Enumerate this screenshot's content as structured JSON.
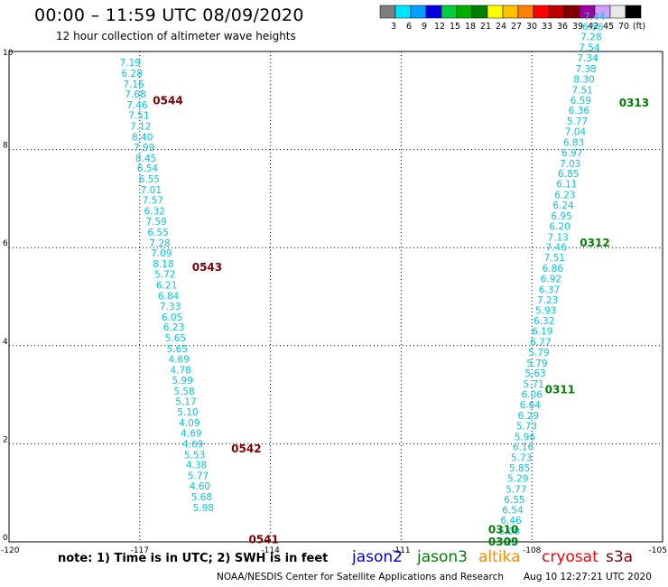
{
  "header": {
    "title": "00:00 – 11:59 UTC 08/09/2020",
    "subtitle": "12 hour collection of altimeter wave heights"
  },
  "colorbar": {
    "labels": [
      "3",
      "6",
      "9",
      "12",
      "15",
      "18",
      "21",
      "24",
      "27",
      "30",
      "33",
      "36",
      "39",
      "42",
      "45",
      "70",
      "(ft)"
    ],
    "colors": [
      "#7f7f7f",
      "#00e5ff",
      "#00a0ff",
      "#0000e0",
      "#00d040",
      "#00b000",
      "#008000",
      "#ffff00",
      "#ffc000",
      "#ff8000",
      "#ff0000",
      "#c00000",
      "#800000",
      "#a000a0",
      "#d0a0ff",
      "#e8e8e8",
      "#000000"
    ]
  },
  "footer": {
    "note": "note:  1) Time is in UTC;  2) SWH is in feet",
    "satellites": [
      {
        "name": "jason2",
        "color": "#0000e0"
      },
      {
        "name": "jason3",
        "color": "#008000"
      },
      {
        "name": "altika",
        "color": "#ff8c00"
      },
      {
        "name": "cryosat",
        "color": "#ff0000"
      },
      {
        "name": "s3a",
        "color": "#800000"
      }
    ],
    "credit": "NOAA/NESDIS Center for Satellite Applications and Research",
    "timestamp": "Aug 10 12:27:21 UTC 2020"
  },
  "chart_data": {
    "type": "scatter",
    "title": "12 hour collection of altimeter wave heights",
    "xlim": [
      -120,
      -105
    ],
    "ylim": [
      0,
      10
    ],
    "x_ticks": [
      "-120",
      "-117",
      "-114",
      "-111",
      "-108",
      "-105"
    ],
    "y_ticks": [
      "0",
      "2",
      "4",
      "6",
      "8",
      "10"
    ],
    "grid": true,
    "value_color": "#00c8e8",
    "series": [
      {
        "satellite": "s3a",
        "values": [
          "7.19",
          "6.28",
          "7.16",
          "7.68",
          "7.46",
          "7.51",
          "7.12",
          "8.40",
          "7.99",
          "8.45",
          "6.54",
          "6.55",
          "7.01",
          "7.57",
          "6.32",
          "7.59",
          "6.55",
          "7.28",
          "7.09",
          "8.18",
          "5.72",
          "6.21",
          "6.84",
          "7.33",
          "6.05",
          "6.23",
          "5.65",
          "5.65",
          "4.69",
          "4.78",
          "5.99",
          "5.58",
          "5.17",
          "5.10",
          "4.09",
          "4.69",
          "4.69",
          "5.53",
          "4.38",
          "5.77",
          "4.60",
          "5.68",
          "5.98"
        ],
        "x": [
          -117.22,
          -117.18,
          -117.14,
          -117.1,
          -117.06,
          -117.02,
          -116.98,
          -116.94,
          -116.9,
          -116.86,
          -116.82,
          -116.78,
          -116.74,
          -116.7,
          -116.66,
          -116.62,
          -116.58,
          -116.54,
          -116.5,
          -116.46,
          -116.42,
          -116.38,
          -116.34,
          -116.3,
          -116.26,
          -116.22,
          -116.18,
          -116.14,
          -116.1,
          -116.06,
          -116.02,
          -115.98,
          -115.94,
          -115.9,
          -115.86,
          -115.82,
          -115.78,
          -115.74,
          -115.7,
          -115.66,
          -115.62,
          -115.58,
          -115.54
        ],
        "y": [
          9.78,
          9.56,
          9.34,
          9.13,
          8.91,
          8.7,
          8.48,
          8.26,
          8.05,
          7.83,
          7.62,
          7.4,
          7.18,
          6.97,
          6.75,
          6.54,
          6.32,
          6.1,
          5.89,
          5.67,
          5.46,
          5.24,
          5.02,
          4.81,
          4.59,
          4.38,
          4.16,
          3.94,
          3.73,
          3.51,
          3.3,
          3.08,
          2.86,
          2.65,
          2.43,
          2.22,
          2.0,
          1.78,
          1.57,
          1.35,
          1.14,
          0.92,
          0.7
        ]
      },
      {
        "satellite": "jason3",
        "values": [
          "5.28",
          "6.00",
          "6.46",
          "6.54",
          "6.55",
          "5.77",
          "5.29",
          "5.85",
          "5.73",
          "6.16",
          "5.96",
          "5.73",
          "6.29",
          "6.64",
          "6.06",
          "5.71",
          "5.63",
          "5.79",
          "5.79",
          "6.77",
          "6.19",
          "6.32",
          "5.93",
          "7.23",
          "6.37",
          "6.92",
          "6.86",
          "7.51",
          "7.46",
          "7.13",
          "6.20",
          "6.95",
          "6.24",
          "6.23",
          "6.11",
          "6.85",
          "7.03",
          "6.97",
          "6.83",
          "7.04",
          "5.77",
          "6.36",
          "6.59",
          "7.51",
          "8.30",
          "7.38",
          "7.34",
          "7.54",
          "7.28",
          "6.56",
          "7.44"
        ],
        "x": [
          -108.56,
          -108.52,
          -108.48,
          -108.44,
          -108.4,
          -108.36,
          -108.32,
          -108.28,
          -108.24,
          -108.2,
          -108.16,
          -108.12,
          -108.08,
          -108.04,
          -108.0,
          -107.96,
          -107.92,
          -107.88,
          -107.84,
          -107.8,
          -107.76,
          -107.72,
          -107.68,
          -107.64,
          -107.6,
          -107.56,
          -107.52,
          -107.48,
          -107.44,
          -107.4,
          -107.36,
          -107.32,
          -107.28,
          -107.24,
          -107.2,
          -107.16,
          -107.12,
          -107.08,
          -107.04,
          -107.0,
          -106.96,
          -106.92,
          -106.88,
          -106.84,
          -106.8,
          -106.76,
          -106.72,
          -106.68,
          -106.64,
          -106.6,
          -106.56
        ],
        "y": [
          0.0,
          0.22,
          0.44,
          0.65,
          0.87,
          1.08,
          1.3,
          1.51,
          1.72,
          1.94,
          2.15,
          2.37,
          2.58,
          2.8,
          3.01,
          3.22,
          3.44,
          3.65,
          3.87,
          4.08,
          4.3,
          4.51,
          4.72,
          4.94,
          5.15,
          5.37,
          5.58,
          5.8,
          6.01,
          6.22,
          6.44,
          6.65,
          6.87,
          7.08,
          7.3,
          7.51,
          7.72,
          7.94,
          8.15,
          8.37,
          8.58,
          8.8,
          9.01,
          9.22,
          9.44,
          9.65,
          9.87,
          10.08,
          10.3,
          10.51,
          10.72
        ]
      }
    ],
    "time_labels": [
      {
        "text": "0544",
        "x": -116.7,
        "y": 9.0,
        "color": "#800000"
      },
      {
        "text": "0543",
        "x": -115.8,
        "y": 5.6,
        "color": "#800000"
      },
      {
        "text": "0542",
        "x": -114.9,
        "y": 1.9,
        "color": "#800000"
      },
      {
        "text": "0541",
        "x": -114.5,
        "y": 0.05,
        "color": "#800000"
      },
      {
        "text": "0313",
        "x": -106.0,
        "y": 8.95,
        "color": "#008000"
      },
      {
        "text": "0312",
        "x": -106.9,
        "y": 6.1,
        "color": "#008000"
      },
      {
        "text": "0311",
        "x": -107.7,
        "y": 3.1,
        "color": "#008000"
      },
      {
        "text": "0310",
        "x": -109.0,
        "y": 0.25,
        "color": "#008000"
      },
      {
        "text": "0309",
        "x": -109.0,
        "y": 0.0,
        "color": "#008000"
      }
    ]
  }
}
